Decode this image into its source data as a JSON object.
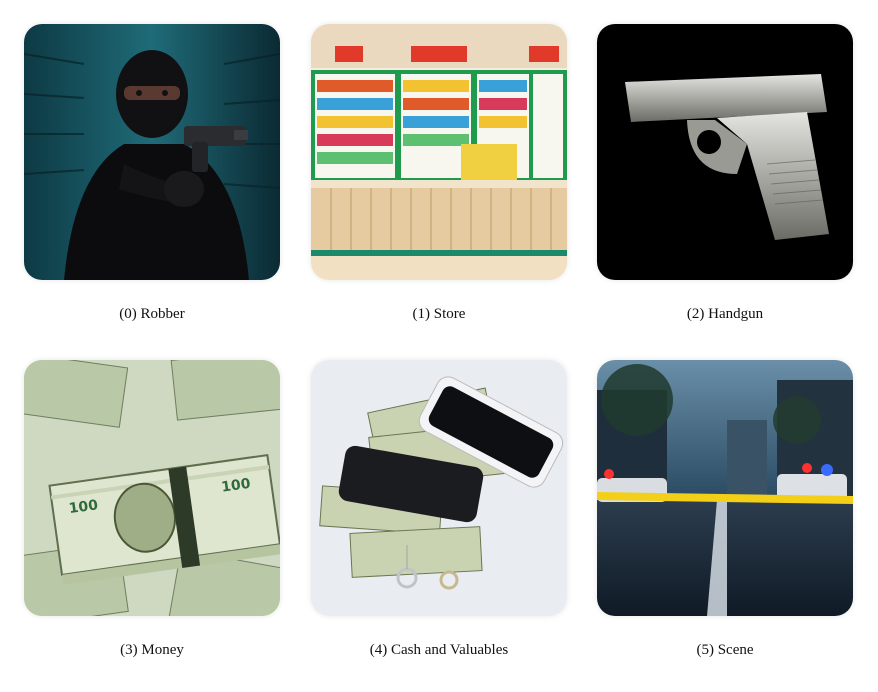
{
  "items": [
    {
      "index": 0,
      "caption": "(0) Robber",
      "image": "masked-robber-with-gun"
    },
    {
      "index": 1,
      "caption": "(1) Store",
      "image": "convenience-store-counter"
    },
    {
      "index": 2,
      "caption": "(2) Handgun",
      "image": "handgun"
    },
    {
      "index": 3,
      "caption": "(3) Money",
      "image": "stacks-of-cash"
    },
    {
      "index": 4,
      "caption": "(4) Cash and Valuables",
      "image": "cash-phones-rings"
    },
    {
      "index": 5,
      "caption": "(5) Scene",
      "image": "police-crime-scene-street"
    }
  ]
}
